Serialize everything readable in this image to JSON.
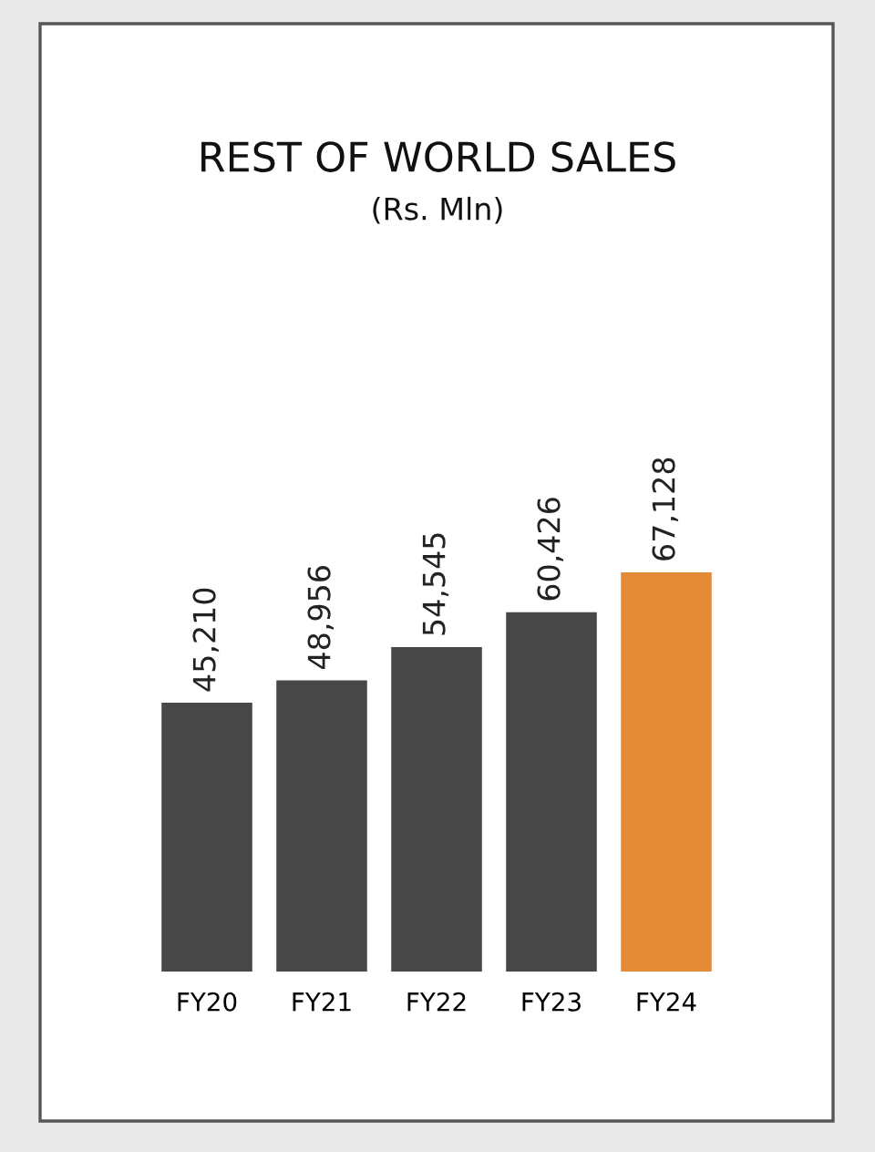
{
  "chart_data": {
    "type": "bar",
    "title": "REST OF WORLD SALES",
    "subtitle": "(Rs. Mln)",
    "categories": [
      "FY20",
      "FY21",
      "FY22",
      "FY23",
      "FY24"
    ],
    "values": [
      45210,
      48956,
      54545,
      60426,
      67128
    ],
    "colors": [
      "#474747",
      "#474747",
      "#474747",
      "#474747",
      "#e38b36"
    ],
    "value_labels": [
      "45,210",
      "48,956",
      "54,545",
      "60,426",
      "67,128"
    ],
    "tick_labels": "x",
    "grid": false,
    "legend": false
  }
}
